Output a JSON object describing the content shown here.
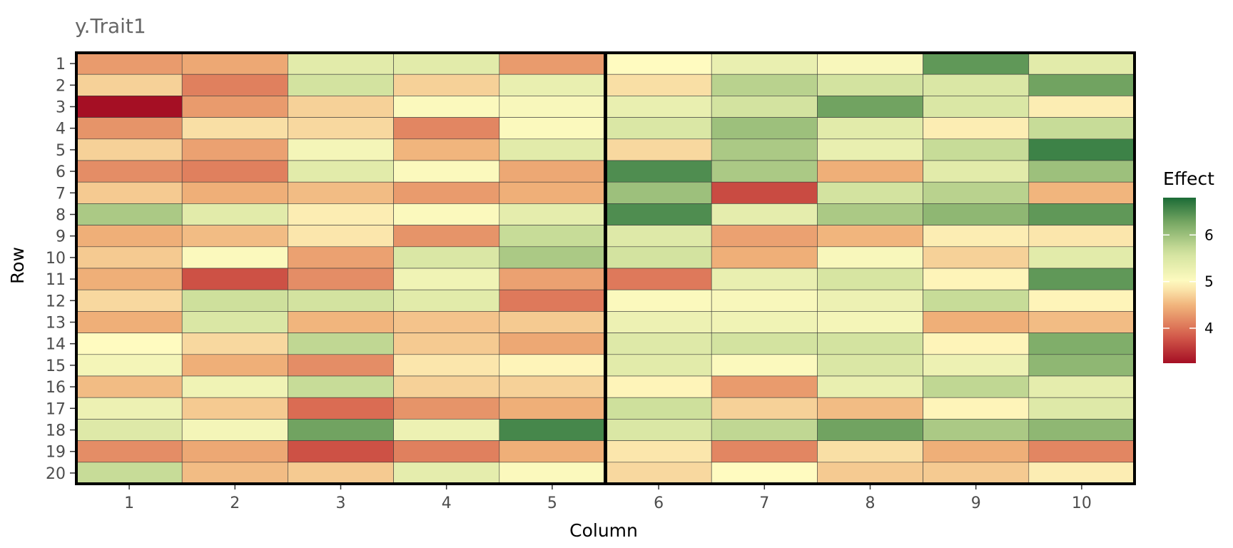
{
  "chart_data": {
    "type": "heatmap",
    "title": "y.Trait1",
    "xlabel": "Column",
    "ylabel": "Row",
    "columns": [
      1,
      2,
      3,
      4,
      5,
      6,
      7,
      8,
      9,
      10
    ],
    "rows": [
      1,
      2,
      3,
      4,
      5,
      6,
      7,
      8,
      9,
      10,
      11,
      12,
      13,
      14,
      15,
      16,
      17,
      18,
      19,
      20
    ],
    "panel_split_after_column": 5,
    "legend": {
      "title": "Effect",
      "position": "right",
      "ticks": [
        4,
        5,
        6
      ],
      "range": [
        3.25,
        6.8
      ],
      "colors": {
        "low": "#a50f24",
        "mid": "#fffbc0",
        "high": "#1b6b36"
      },
      "midpoint": 5
    },
    "values": [
      [
        4.3,
        4.4,
        5.4,
        5.4,
        4.3,
        5.0,
        5.3,
        5.1,
        6.4,
        5.4
      ],
      [
        4.7,
        4.1,
        5.6,
        4.7,
        5.3,
        4.8,
        5.8,
        5.6,
        5.5,
        6.3
      ],
      [
        3.25,
        4.3,
        4.7,
        5.05,
        5.1,
        5.3,
        5.6,
        6.3,
        5.5,
        4.9
      ],
      [
        4.25,
        4.8,
        4.75,
        4.15,
        5.05,
        5.5,
        6.0,
        5.4,
        4.9,
        5.7
      ],
      [
        4.7,
        4.35,
        5.15,
        4.5,
        5.4,
        4.75,
        5.9,
        5.3,
        5.7,
        6.6
      ],
      [
        4.2,
        4.1,
        5.4,
        5.05,
        4.4,
        6.5,
        5.9,
        4.45,
        5.4,
        6.0
      ],
      [
        4.65,
        4.45,
        4.55,
        4.3,
        4.45,
        6.0,
        3.7,
        5.6,
        5.8,
        4.5
      ],
      [
        5.9,
        5.4,
        4.9,
        5.05,
        5.35,
        6.5,
        5.35,
        5.9,
        6.1,
        6.4
      ],
      [
        4.45,
        4.55,
        4.85,
        4.25,
        5.7,
        5.45,
        4.35,
        4.5,
        4.9,
        4.85
      ],
      [
        4.65,
        5.05,
        4.35,
        5.5,
        5.9,
        5.6,
        4.45,
        5.1,
        4.7,
        5.4
      ],
      [
        4.45,
        3.75,
        4.2,
        5.2,
        4.35,
        4.05,
        5.3,
        5.55,
        4.95,
        6.4
      ],
      [
        4.75,
        5.65,
        5.6,
        5.4,
        4.05,
        5.05,
        5.1,
        5.25,
        5.7,
        4.95
      ],
      [
        4.45,
        5.5,
        4.5,
        4.6,
        4.65,
        5.25,
        5.2,
        5.15,
        4.45,
        4.55
      ],
      [
        5.0,
        4.75,
        5.75,
        4.65,
        4.4,
        5.45,
        5.6,
        5.6,
        4.95,
        6.2
      ],
      [
        5.15,
        4.45,
        4.2,
        4.85,
        4.95,
        5.4,
        5.05,
        5.5,
        5.25,
        6.1
      ],
      [
        4.55,
        5.2,
        5.7,
        4.7,
        4.7,
        4.95,
        4.3,
        5.3,
        5.75,
        5.35
      ],
      [
        5.25,
        4.65,
        3.95,
        4.25,
        4.45,
        5.65,
        4.7,
        4.55,
        4.95,
        5.45
      ],
      [
        5.45,
        5.15,
        6.3,
        5.25,
        6.55,
        5.5,
        5.75,
        6.3,
        5.9,
        6.1
      ],
      [
        4.2,
        4.4,
        3.75,
        4.1,
        4.45,
        4.85,
        4.15,
        4.8,
        4.45,
        4.15
      ],
      [
        5.7,
        4.55,
        4.65,
        5.35,
        5.05,
        4.75,
        5.0,
        4.65,
        4.65,
        4.9
      ]
    ]
  }
}
